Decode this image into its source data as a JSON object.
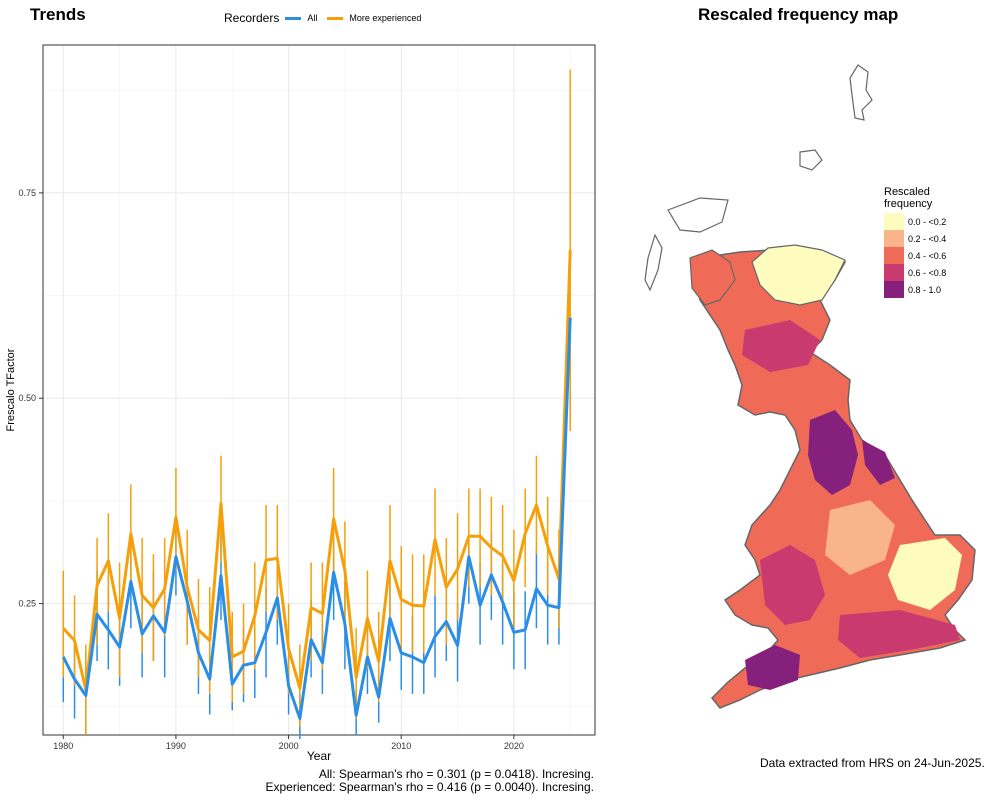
{
  "trends_title": "Trends",
  "map_title": "Rescaled frequency map",
  "legend": {
    "title": "Recorders",
    "items": [
      {
        "label": "All",
        "color": "#2b8ee6"
      },
      {
        "label": "More experienced",
        "color": "#f5a00a"
      }
    ]
  },
  "stats": {
    "all": "All: Spearman's rho = 0.301 (p = 0.0418). Incresing.",
    "experienced": "Experienced: Spearman's rho = 0.416 (p = 0.0040). Incresing."
  },
  "source_note": "Data extracted from HRS on 24-Jun-2025.",
  "map_legend": {
    "title_line1": "Rescaled",
    "title_line2": "frequency",
    "bins": [
      {
        "label": "0.0 - <0.2",
        "color": "#fdfbbd"
      },
      {
        "label": "0.2 - <0.4",
        "color": "#f9b489"
      },
      {
        "label": "0.4 - <0.6",
        "color": "#ef6b58"
      },
      {
        "label": "0.6 - <0.8",
        "color": "#c93a6e"
      },
      {
        "label": "0.8 - 1.0",
        "color": "#85207c"
      }
    ]
  },
  "chart_data": {
    "type": "line",
    "xlabel": "Year",
    "ylabel": "Frescalo TFactor",
    "xlim": [
      1978.2,
      2027.2
    ],
    "ylim": [
      0.09,
      0.93
    ],
    "xticks": [
      1980,
      1990,
      2000,
      2010,
      2020
    ],
    "xtick_labels": [
      "1980",
      "1990",
      "2000",
      "2010",
      "2020"
    ],
    "yticks": [
      0.25,
      0.5,
      0.75
    ],
    "ytick_labels": [
      "0.25",
      "0.50",
      "0.75"
    ],
    "grid": true,
    "legend_position": "top",
    "x": [
      1980,
      1981,
      1982,
      1983,
      1984,
      1985,
      1986,
      1987,
      1988,
      1989,
      1990,
      1991,
      1992,
      1993,
      1994,
      1995,
      1996,
      1997,
      1998,
      1999,
      2000,
      2001,
      2002,
      2003,
      2004,
      2005,
      2006,
      2007,
      2008,
      2009,
      2010,
      2011,
      2012,
      2013,
      2014,
      2015,
      2016,
      2017,
      2018,
      2019,
      2020,
      2021,
      2022,
      2023,
      2024,
      2025
    ],
    "series": [
      {
        "name": "All",
        "color": "#2b8ee6",
        "values": [
          0.185,
          0.158,
          0.138,
          0.237,
          0.218,
          0.197,
          0.277,
          0.213,
          0.235,
          0.215,
          0.307,
          0.253,
          0.19,
          0.158,
          0.284,
          0.152,
          0.175,
          0.178,
          0.215,
          0.257,
          0.15,
          0.11,
          0.206,
          0.178,
          0.288,
          0.225,
          0.114,
          0.185,
          0.136,
          0.232,
          0.19,
          0.185,
          0.178,
          0.21,
          0.228,
          0.199,
          0.307,
          0.248,
          0.285,
          0.252,
          0.215,
          0.218,
          0.268,
          0.248,
          0.245,
          0.598
        ],
        "err_low": [
          0.13,
          0.11,
          0.09,
          0.18,
          0.17,
          0.15,
          0.22,
          0.16,
          0.18,
          0.16,
          0.26,
          0.2,
          0.14,
          0.115,
          0.23,
          0.12,
          0.13,
          0.135,
          0.16,
          0.2,
          0.115,
          0.085,
          0.16,
          0.14,
          0.23,
          0.17,
          0.09,
          0.14,
          0.105,
          0.18,
          0.145,
          0.14,
          0.14,
          0.16,
          0.18,
          0.155,
          0.25,
          0.2,
          0.23,
          0.2,
          0.17,
          0.17,
          0.22,
          0.2,
          0.2,
          0.47
        ],
        "err_high": [
          0.245,
          0.205,
          0.19,
          0.29,
          0.27,
          0.25,
          0.32,
          0.26,
          0.29,
          0.265,
          0.345,
          0.305,
          0.235,
          0.205,
          0.335,
          0.195,
          0.22,
          0.22,
          0.27,
          0.31,
          0.185,
          0.14,
          0.255,
          0.225,
          0.33,
          0.275,
          0.145,
          0.235,
          0.175,
          0.285,
          0.24,
          0.235,
          0.225,
          0.26,
          0.28,
          0.25,
          0.335,
          0.3,
          0.335,
          0.3,
          0.265,
          0.265,
          0.315,
          0.3,
          0.3,
          0.52
        ]
      },
      {
        "name": "More experienced",
        "color": "#f5a00a",
        "values": [
          0.22,
          0.205,
          0.145,
          0.272,
          0.302,
          0.232,
          0.335,
          0.26,
          0.245,
          0.268,
          0.355,
          0.27,
          0.218,
          0.205,
          0.372,
          0.185,
          0.192,
          0.235,
          0.303,
          0.305,
          0.195,
          0.147,
          0.245,
          0.238,
          0.353,
          0.29,
          0.16,
          0.232,
          0.18,
          0.302,
          0.255,
          0.248,
          0.247,
          0.328,
          0.27,
          0.292,
          0.332,
          0.332,
          0.318,
          0.308,
          0.278,
          0.335,
          0.37,
          0.32,
          0.28,
          0.68
        ],
        "err_low": [
          0.16,
          0.15,
          0.09,
          0.2,
          0.24,
          0.16,
          0.27,
          0.19,
          0.18,
          0.21,
          0.29,
          0.2,
          0.16,
          0.14,
          0.3,
          0.13,
          0.14,
          0.17,
          0.24,
          0.23,
          0.14,
          0.1,
          0.18,
          0.17,
          0.29,
          0.22,
          0.11,
          0.17,
          0.13,
          0.23,
          0.19,
          0.19,
          0.19,
          0.26,
          0.2,
          0.23,
          0.27,
          0.27,
          0.26,
          0.25,
          0.22,
          0.27,
          0.31,
          0.26,
          0.22,
          0.46
        ],
        "err_high": [
          0.29,
          0.26,
          0.2,
          0.33,
          0.36,
          0.3,
          0.395,
          0.33,
          0.31,
          0.33,
          0.415,
          0.34,
          0.28,
          0.27,
          0.43,
          0.24,
          0.25,
          0.3,
          0.37,
          0.37,
          0.25,
          0.2,
          0.3,
          0.3,
          0.415,
          0.35,
          0.22,
          0.29,
          0.24,
          0.37,
          0.32,
          0.31,
          0.31,
          0.39,
          0.33,
          0.36,
          0.39,
          0.39,
          0.38,
          0.37,
          0.34,
          0.39,
          0.43,
          0.38,
          0.34,
          0.9
        ]
      }
    ]
  }
}
